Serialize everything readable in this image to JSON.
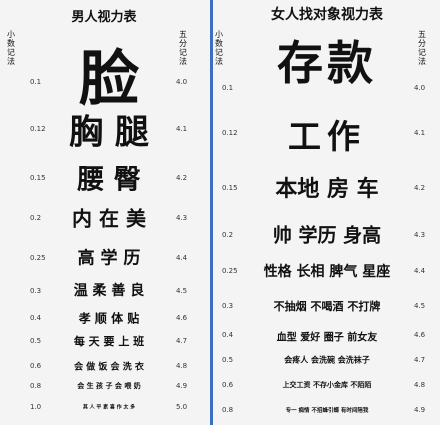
{
  "left": {
    "title": "男人视力表",
    "left_axis": "小数记法",
    "right_axis": "五分记法",
    "rows": [
      {
        "left": "0.1",
        "right": "4.0",
        "text": "脸"
      },
      {
        "left": "0.12",
        "right": "4.1",
        "text": "胸 腿"
      },
      {
        "left": "0.15",
        "right": "4.2",
        "text": "腰   臀"
      },
      {
        "left": "0.2",
        "right": "4.3",
        "text": "内 在 美"
      },
      {
        "left": "0.25",
        "right": "4.4",
        "text": "高 学 历"
      },
      {
        "left": "0.3",
        "right": "4.5",
        "text": "温 柔 善 良"
      },
      {
        "left": "0.4",
        "right": "4.6",
        "text": "孝  顺  体  贴"
      },
      {
        "left": "0.5",
        "right": "4.7",
        "text": "每 天 要 上 班"
      },
      {
        "left": "0.6",
        "right": "4.8",
        "text": "会 做 饭 会 洗 衣"
      },
      {
        "left": "0.8",
        "right": "4.9",
        "text": "会 生 孩 子 会 喂 奶"
      },
      {
        "left": "1.0",
        "right": "5.0",
        "text": "其 人 平 素 喜 作 太 多"
      }
    ]
  },
  "right": {
    "title": "女人找对象视力表",
    "left_axis": "小数记法",
    "right_axis": "五分记法",
    "rows": [
      {
        "left": "0.1",
        "right": "4.0",
        "text": "存款"
      },
      {
        "left": "0.12",
        "right": "4.1",
        "text": "工作"
      },
      {
        "left": "0.15",
        "right": "4.2",
        "text": "本地  房  车"
      },
      {
        "left": "0.2",
        "right": "4.3",
        "text": "帅  学历  身高"
      },
      {
        "left": "0.25",
        "right": "4.4",
        "text": "性格  长相  脾气  星座"
      },
      {
        "left": "0.3",
        "right": "4.5",
        "text": "不抽烟  不喝酒  不打牌"
      },
      {
        "left": "0.4",
        "right": "4.6",
        "text": "血型  爱好  圈子  前女友"
      },
      {
        "left": "0.5",
        "right": "4.7",
        "text": "会疼人  会洗碗  会洗袜子"
      },
      {
        "left": "0.6",
        "right": "4.8",
        "text": "上交工资  不存小金库  不陌陌"
      },
      {
        "left": "0.8",
        "right": "4.9",
        "text": "专一  痴情  不招蜂引蝶  有时间陪我"
      }
    ]
  }
}
